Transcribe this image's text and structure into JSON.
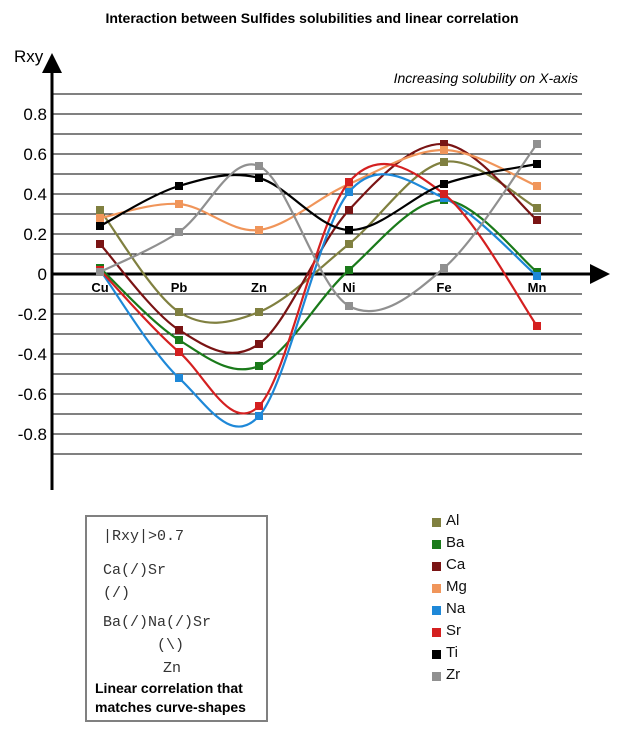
{
  "chart_data": {
    "type": "line",
    "title": "Interaction between Sulfides solubilities and linear correlation",
    "ylabel": "Rxy",
    "xlabel": "",
    "annotation": "Increasing solubility on X-axis",
    "categories": [
      "Cu",
      "Pb",
      "Zn",
      "Ni",
      "Fe",
      "Mn"
    ],
    "ylim": [
      -1.1,
      1.0
    ],
    "yticks": [
      "0.8",
      "0.6",
      "0.4",
      "0.2",
      "0",
      "-0.2",
      "-0.4",
      "-0.6",
      "-0.8"
    ],
    "grid": true,
    "legend_position": "bottom-right",
    "series": [
      {
        "name": "Al",
        "color": "#808040",
        "values": [
          0.32,
          -0.19,
          -0.19,
          0.15,
          0.56,
          0.33
        ]
      },
      {
        "name": "Ba",
        "color": "#1a7a1a",
        "values": [
          0.03,
          -0.33,
          -0.46,
          0.02,
          0.37,
          0.01
        ]
      },
      {
        "name": "Ca",
        "color": "#7a1414",
        "values": [
          0.15,
          -0.28,
          -0.35,
          0.32,
          0.65,
          0.27
        ]
      },
      {
        "name": "Mg",
        "color": "#f0955a",
        "values": [
          0.28,
          0.35,
          0.22,
          0.45,
          0.62,
          0.44
        ]
      },
      {
        "name": "Na",
        "color": "#1e88d8",
        "values": [
          0.02,
          -0.52,
          -0.71,
          0.41,
          0.38,
          -0.01
        ]
      },
      {
        "name": "Sr",
        "color": "#d42020",
        "values": [
          0.02,
          -0.39,
          -0.66,
          0.46,
          0.4,
          -0.26
        ]
      },
      {
        "name": "Ti",
        "color": "#000000",
        "values": [
          0.24,
          0.44,
          0.48,
          0.22,
          0.45,
          0.55
        ]
      },
      {
        "name": "Zr",
        "color": "#909090",
        "values": [
          0.01,
          0.21,
          0.54,
          -0.16,
          0.03,
          0.65
        ]
      }
    ]
  },
  "notes_box": {
    "line1": "|Rxy|>0.7",
    "line2": "Ca(/)Sr",
    "line3": "(/)",
    "line4": "Ba(/)Na(/)Sr",
    "line5": "(\\)",
    "line6": "Zn",
    "caption1": "Linear correlation that",
    "caption2": "matches curve-shapes"
  }
}
